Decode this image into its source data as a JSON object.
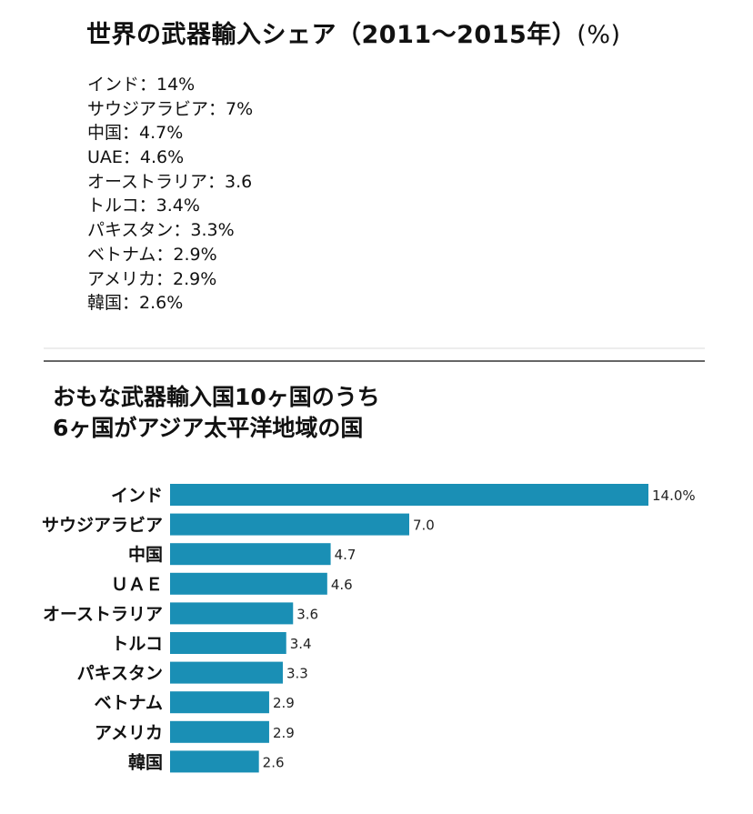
{
  "header": {
    "title": "世界の武器輸入シェア（2011～2015年）",
    "unit": "(%)"
  },
  "share_list": [
    "インド：14%",
    "サウジアラビア：7%",
    "中国：4.7%",
    "UAE：4.6%",
    "オーストラリア：3.6",
    "トルコ：3.4%",
    "パキスタン：3.3%",
    "ベトナム：2.9%",
    "アメリカ：2.9%",
    "韓国：2.6%"
  ],
  "subtitle": {
    "line1": "おもな武器輸入国10ヶ国のうち",
    "line2": "6ヶ国がアジア太平洋地域の国"
  },
  "colors": {
    "bar": "#1a8fb5",
    "divider": "#666666"
  },
  "chart_data": {
    "type": "bar",
    "orientation": "horizontal",
    "title": "おもな武器輸入国10ヶ国のうち6ヶ国がアジア太平洋地域の国",
    "categories": [
      "インド",
      "サウジアラビア",
      "中国",
      "ＵＡＥ",
      "オーストラリア",
      "トルコ",
      "パキスタン",
      "ベトナム",
      "アメリカ",
      "韓国"
    ],
    "values": [
      14.0,
      7.0,
      4.7,
      4.6,
      3.6,
      3.4,
      3.3,
      2.9,
      2.9,
      2.6
    ],
    "value_labels": [
      "14.0%",
      "7.0",
      "4.7",
      "4.6",
      "3.6",
      "3.4",
      "3.3",
      "2.9",
      "2.9",
      "2.6"
    ],
    "xlabel": "",
    "ylabel": "",
    "xlim": [
      0,
      14.0
    ],
    "grid": false,
    "legend": "none"
  }
}
